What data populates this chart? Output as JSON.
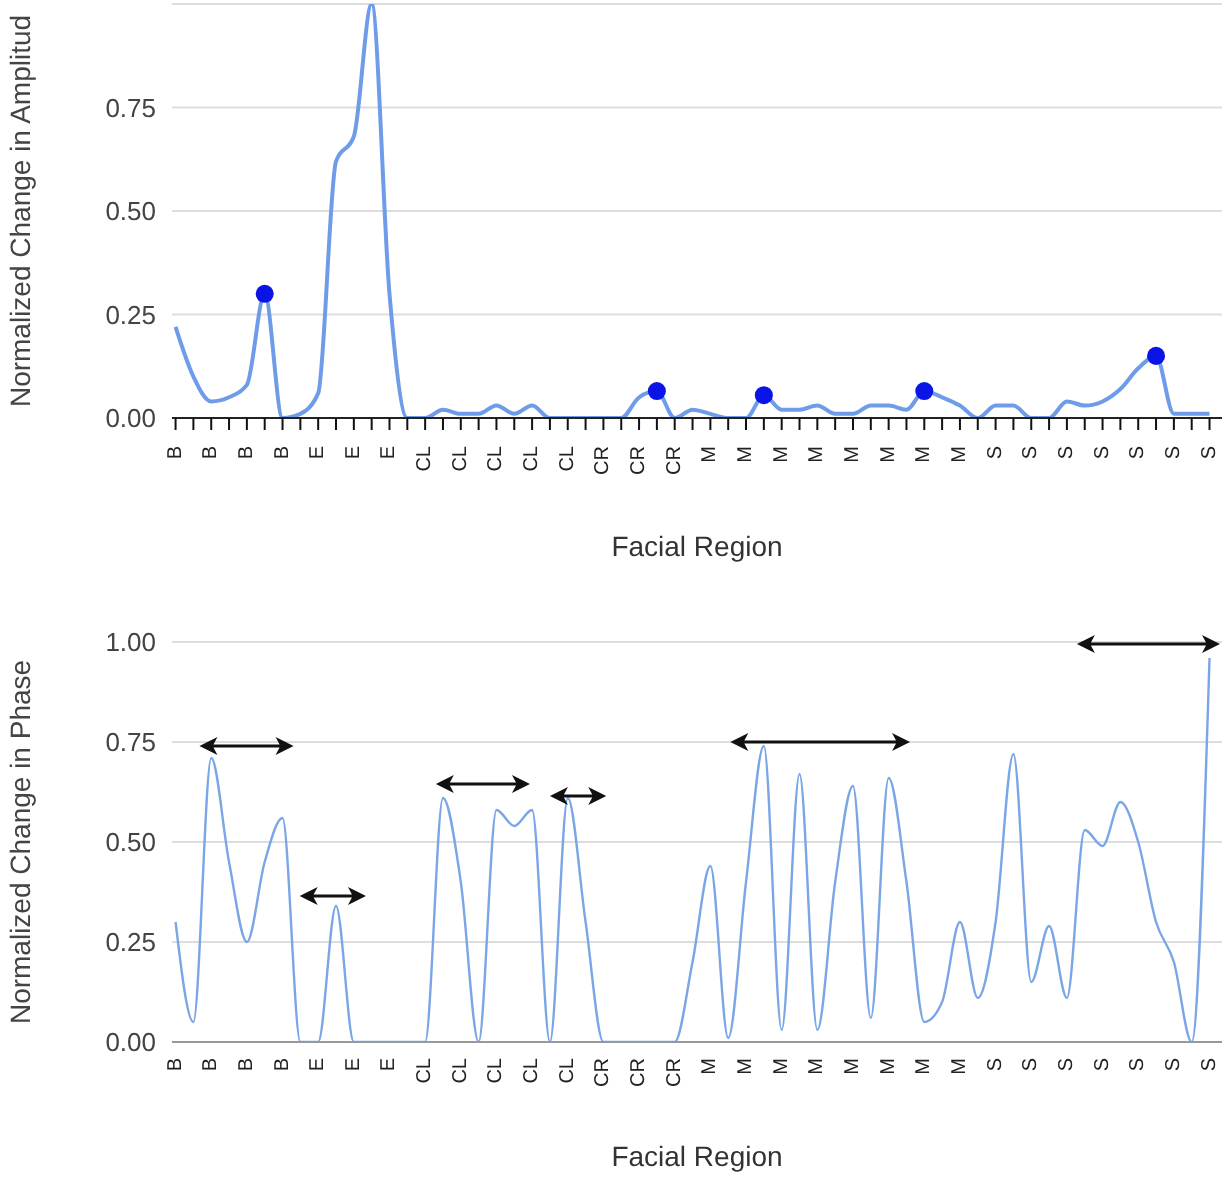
{
  "chart_data": [
    {
      "type": "line",
      "ylabel": "Normalized Change in Amplitud",
      "xlabel": "Facial Region",
      "grid": "y",
      "categories": [
        "B",
        null,
        "B",
        null,
        "B",
        null,
        "B",
        null,
        "E",
        null,
        "E",
        null,
        "E",
        null,
        "CL",
        null,
        "CL",
        null,
        "CL",
        null,
        "CL",
        null,
        "CL",
        null,
        "CR",
        null,
        "CR",
        null,
        "CR",
        null,
        "M",
        null,
        "M",
        null,
        "M",
        null,
        "M",
        null,
        "M",
        null,
        "M",
        null,
        "M",
        null,
        "M",
        null,
        "S",
        null,
        "S",
        null,
        "S",
        null,
        "S",
        null,
        "S",
        null,
        "S",
        null,
        "S"
      ],
      "ylim": [
        0,
        1
      ],
      "yticks": [
        {
          "value": 0,
          "label": "0.00"
        },
        {
          "value": 0.25,
          "label": "0.25"
        },
        {
          "value": 0.5,
          "label": "0.50"
        },
        {
          "value": 0.75,
          "label": "0.75"
        }
      ],
      "series": [
        {
          "type": "line",
          "color": "#6f9ce8",
          "values": [
            0.22,
            0.1,
            0.04,
            0.05,
            0.08,
            0.3,
            0,
            0.01,
            0.06,
            0.62,
            0.68,
            1,
            0.3,
            0,
            0,
            0.02,
            0.01,
            0.01,
            0.03,
            0.01,
            0.03,
            0,
            0,
            0,
            0,
            0,
            0.05,
            0.065,
            0,
            0.02,
            0.01,
            0,
            0,
            0.055,
            0.02,
            0.02,
            0.03,
            0.01,
            0.01,
            0.03,
            0.03,
            0.02,
            0.065,
            0.05,
            0.03,
            0,
            0.03,
            0.03,
            0,
            0,
            0.04,
            0.03,
            0.04,
            0.07,
            0.12,
            0.15,
            0.01,
            0.01,
            0.01
          ]
        },
        {
          "type": "scatter",
          "color": "#0a14e6",
          "values": [
            null,
            null,
            null,
            null,
            null,
            0.3,
            null,
            null,
            null,
            null,
            null,
            null,
            null,
            null,
            null,
            null,
            null,
            null,
            null,
            null,
            null,
            null,
            null,
            null,
            null,
            null,
            null,
            0.065,
            null,
            null,
            null,
            null,
            null,
            0.055,
            null,
            null,
            null,
            null,
            null,
            null,
            null,
            null,
            0.065,
            null,
            null,
            null,
            null,
            null,
            null,
            null,
            null,
            null,
            null,
            null,
            null,
            0.15,
            null,
            null,
            null
          ]
        }
      ]
    },
    {
      "type": "line",
      "ylabel": "Normalized Change in Phase",
      "xlabel": "Facial Region",
      "grid": "y",
      "categories": [
        "B",
        null,
        "B",
        null,
        "B",
        null,
        "B",
        null,
        "E",
        null,
        "E",
        null,
        "E",
        null,
        "CL",
        null,
        "CL",
        null,
        "CL",
        null,
        "CL",
        null,
        "CL",
        null,
        "CR",
        null,
        "CR",
        null,
        "CR",
        null,
        "M",
        null,
        "M",
        null,
        "M",
        null,
        "M",
        null,
        "M",
        null,
        "M",
        null,
        "M",
        null,
        "M",
        null,
        "S",
        null,
        "S",
        null,
        "S",
        null,
        "S",
        null,
        "S",
        null,
        "S",
        null,
        "S"
      ],
      "ylim": [
        0,
        1
      ],
      "yticks": [
        {
          "value": 0,
          "label": "0.00"
        },
        {
          "value": 0.25,
          "label": "0.25"
        },
        {
          "value": 0.5,
          "label": "0.50"
        },
        {
          "value": 0.75,
          "label": "0.75"
        },
        {
          "value": 1,
          "label": "1.00"
        }
      ],
      "series": [
        {
          "type": "line",
          "color": "#7aa6e6",
          "values": [
            0.3,
            0.05,
            0.71,
            0.45,
            0.25,
            0.45,
            0.56,
            0,
            0,
            0.34,
            0,
            0,
            0,
            0,
            0,
            0.61,
            0.4,
            0,
            0.58,
            0.54,
            0.58,
            0,
            0.61,
            0.3,
            0,
            0,
            0,
            0,
            0,
            0.2,
            0.44,
            0.01,
            0.4,
            0.74,
            0.03,
            0.67,
            0.03,
            0.4,
            0.64,
            0.06,
            0.66,
            0.4,
            0.05,
            0.1,
            0.3,
            0.11,
            0.3,
            0.72,
            0.15,
            0.29,
            0.11,
            0.53,
            0.49,
            0.6,
            0.5,
            0.3,
            0.2,
            0,
            0.96
          ]
        }
      ]
    }
  ]
}
